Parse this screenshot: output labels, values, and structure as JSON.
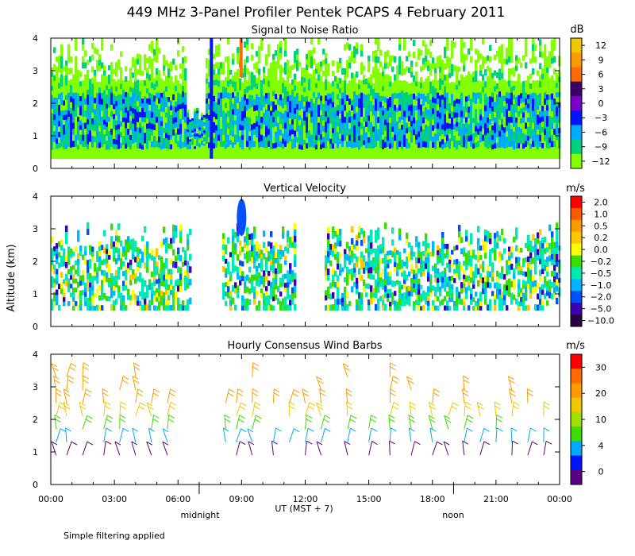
{
  "title": "449 MHz 3-Panel Profiler Pentek PCAPS  4 February 2011",
  "y_axis_label": "Altitude (km)",
  "x_axis_label": "UT  (MST + 7)",
  "midnight_label": "midnight",
  "noon_label": "noon",
  "footer_note": "Simple filtering applied",
  "chart_data": [
    {
      "type": "heatmap",
      "title": "Signal to Noise Ratio",
      "units": "dB",
      "ylim": [
        0,
        4
      ],
      "yticks": [
        "0",
        "1",
        "2",
        "3",
        "4"
      ],
      "xlim": [
        0,
        24
      ],
      "xticks": [
        "00:00",
        "03:00",
        "06:00",
        "09:00",
        "12:00",
        "15:00",
        "18:00",
        "21:00",
        "00:00"
      ],
      "colorbar": {
        "labels": [
          "12",
          "9",
          "6",
          "3",
          "0",
          "−3",
          "−6",
          "−9",
          "−12"
        ],
        "colors": [
          "#f0c800",
          "#ff9b00",
          "#ff6b00",
          "#3c0064",
          "#7a00c8",
          "#0014ff",
          "#00aaff",
          "#00d27a",
          "#84ff00"
        ]
      }
    },
    {
      "type": "heatmap",
      "title": "Vertical Velocity",
      "units": "m/s",
      "ylim": [
        0,
        4
      ],
      "yticks": [
        "0",
        "1",
        "2",
        "3",
        "4"
      ],
      "xlim": [
        0,
        24
      ],
      "colorbar": {
        "labels": [
          "2.0",
          "1.0",
          "0.5",
          "0.2",
          "0.0",
          "−0.2",
          "−0.5",
          "−1.0",
          "−2.0",
          "−5.0",
          "−10.0"
        ],
        "colors": [
          "#ff0000",
          "#ff5a00",
          "#ff9b00",
          "#ffc800",
          "#ffff00",
          "#3cdc00",
          "#00e8b4",
          "#00b4ff",
          "#0050ff",
          "#3c00b4",
          "#2a0046"
        ]
      }
    },
    {
      "type": "scatter",
      "title": "Hourly Consensus Wind Barbs",
      "units": "m/s",
      "ylim": [
        0,
        4
      ],
      "yticks": [
        "0",
        "1",
        "2",
        "3",
        "4"
      ],
      "xlim": [
        0,
        24
      ],
      "colorbar": {
        "labels": [
          "30",
          "20",
          "10",
          "4",
          "0"
        ],
        "colors": [
          "#ff0000",
          "#ff6b00",
          "#ff9b00",
          "#f0c800",
          "#a0e000",
          "#3cdc00",
          "#00aaff",
          "#0014ff",
          "#5a0080"
        ]
      },
      "barb_hours": [
        0.25,
        0.75,
        1.5,
        2.5,
        3.25,
        4.0,
        4.75,
        5.5,
        8.25,
        8.75,
        9.5,
        10.5,
        11.25,
        12.0,
        12.75,
        14.0,
        15.0,
        16.0,
        17.0,
        18.0,
        18.75,
        19.5,
        20.25,
        21.0,
        21.75,
        22.5,
        23.25
      ],
      "barb_levels": [
        0.9,
        1.3,
        1.7,
        2.1,
        2.5,
        2.9,
        3.3,
        3.7
      ]
    }
  ]
}
